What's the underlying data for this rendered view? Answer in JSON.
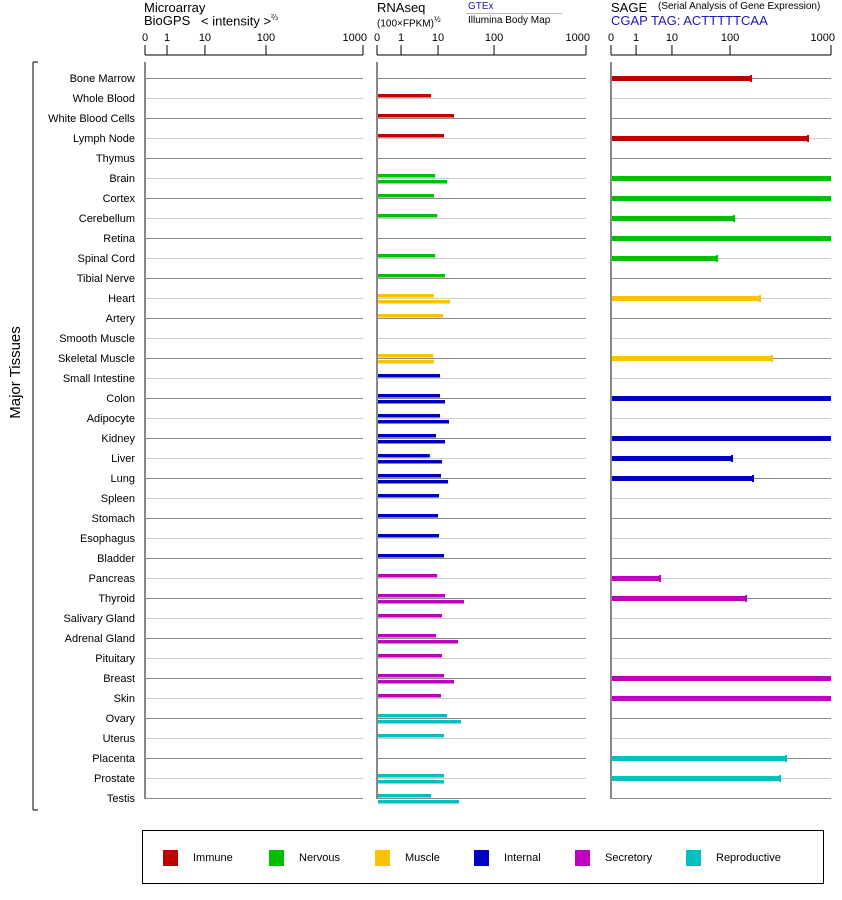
{
  "headers": {
    "microarray": {
      "title": "Microarray",
      "source": "BioGPS",
      "unit": "< intensity >",
      "unit_exp": "⅔"
    },
    "rnaseq": {
      "title": "RNAseq",
      "unit": "(100×FPKM)",
      "unit_exp": "½",
      "source_top": "GTEx",
      "source_bottom": "Illumina Body Map"
    },
    "sage": {
      "title": "SAGE",
      "subtitle": "(Serial Analysis of Gene Expression)",
      "tag": "CGAP TAG: ACTTTTTCAA"
    }
  },
  "chart_data": {
    "type": "bar",
    "orientation": "horizontal",
    "ylabel": "Major Tissues",
    "tick_labels": [
      "0",
      "1",
      "10",
      "100",
      "1000"
    ],
    "xlim": [
      0,
      1000
    ],
    "group_colors": {
      "Immune": "#c00000",
      "Nervous": "#00c000",
      "Muscle": "#ffc000",
      "Internal": "#0000c0",
      "Secretory": "#c000c0",
      "Reproductive": "#00c0c0"
    },
    "legend": [
      "Immune",
      "Nervous",
      "Muscle",
      "Internal",
      "Secretory",
      "Reproductive"
    ],
    "legend_placement": "bottom",
    "panels": [
      "microarray",
      "rnaseq",
      "sage"
    ],
    "tissues": [
      {
        "name": "Bone Marrow",
        "group": "Immune",
        "microarray": null,
        "rnaseq": [],
        "sage": 287
      },
      {
        "name": "Whole Blood",
        "group": "Immune",
        "microarray": null,
        "rnaseq": [
          8.3
        ],
        "sage": null
      },
      {
        "name": "White Blood Cells",
        "group": "Immune",
        "microarray": null,
        "rnaseq": [
          35.7
        ],
        "sage": null
      },
      {
        "name": "Lymph Node",
        "group": "Immune",
        "microarray": null,
        "rnaseq": [
          19.6
        ],
        "sage": 795
      },
      {
        "name": "Thymus",
        "group": "Immune",
        "microarray": null,
        "rnaseq": [],
        "sage": null
      },
      {
        "name": "Brain",
        "group": "Nervous",
        "microarray": null,
        "rnaseq": [
          9.3,
          24.5
        ],
        "sage": 1000
      },
      {
        "name": "Cortex",
        "group": "Nervous",
        "microarray": null,
        "rnaseq": [
          9.0
        ],
        "sage": 1000
      },
      {
        "name": "Cerebellum",
        "group": "Nervous",
        "microarray": null,
        "rnaseq": [
          9.8
        ],
        "sage": 136
      },
      {
        "name": "Retina",
        "group": "Nervous",
        "microarray": null,
        "rnaseq": [],
        "sage": 1000
      },
      {
        "name": "Spinal Cord",
        "group": "Nervous",
        "microarray": null,
        "rnaseq": [
          9.3
        ],
        "sage": 80
      },
      {
        "name": "Tibial Nerve",
        "group": "Nervous",
        "microarray": null,
        "rnaseq": [
          21.2
        ],
        "sage": null
      },
      {
        "name": "Heart",
        "group": "Muscle",
        "microarray": null,
        "rnaseq": [
          9.0,
          29.3
        ],
        "sage": 367
      },
      {
        "name": "Artery",
        "group": "Muscle",
        "microarray": null,
        "rnaseq": [
          18.0
        ],
        "sage": null
      },
      {
        "name": "Smooth Muscle",
        "group": "Muscle",
        "microarray": null,
        "rnaseq": [],
        "sage": null
      },
      {
        "name": "Skeletal Muscle",
        "group": "Muscle",
        "microarray": null,
        "rnaseq": [
          8.8,
          9.0
        ],
        "sage": 474
      },
      {
        "name": "Small Intestine",
        "group": "Internal",
        "microarray": null,
        "rnaseq": [
          13.2
        ],
        "sage": null
      },
      {
        "name": "Colon",
        "group": "Internal",
        "microarray": null,
        "rnaseq": [
          13.2,
          21.2
        ],
        "sage": 1000
      },
      {
        "name": "Adipocyte",
        "group": "Internal",
        "microarray": null,
        "rnaseq": [
          13.2,
          27.7
        ],
        "sage": null
      },
      {
        "name": "Kidney",
        "group": "Internal",
        "microarray": null,
        "rnaseq": [
          9.5,
          21.2
        ],
        "sage": 1000
      },
      {
        "name": "Liver",
        "group": "Internal",
        "microarray": null,
        "rnaseq": [
          8.0,
          16.4
        ],
        "sage": 118
      },
      {
        "name": "Lung",
        "group": "Internal",
        "microarray": null,
        "rnaseq": [
          14.8,
          26.1
        ],
        "sage": 305
      },
      {
        "name": "Spleen",
        "group": "Internal",
        "microarray": null,
        "rnaseq": [
          11.6
        ],
        "sage": null
      },
      {
        "name": "Stomach",
        "group": "Internal",
        "microarray": null,
        "rnaseq": [
          10.0
        ],
        "sage": null
      },
      {
        "name": "Esophagus",
        "group": "Internal",
        "microarray": null,
        "rnaseq": [
          11.6
        ],
        "sage": null
      },
      {
        "name": "Bladder",
        "group": "Internal",
        "microarray": null,
        "rnaseq": [
          19.6
        ],
        "sage": null
      },
      {
        "name": "Pancreas",
        "group": "Secretory",
        "microarray": null,
        "rnaseq": [
          9.8
        ],
        "sage": 7
      },
      {
        "name": "Thyroid",
        "group": "Secretory",
        "microarray": null,
        "rnaseq": [
          21.2,
          51.8
        ],
        "sage": 243
      },
      {
        "name": "Salivary Gland",
        "group": "Secretory",
        "microarray": null,
        "rnaseq": [
          16.4
        ],
        "sage": null
      },
      {
        "name": "Adrenal Gland",
        "group": "Secretory",
        "microarray": null,
        "rnaseq": [
          9.5,
          42.1
        ],
        "sage": null
      },
      {
        "name": "Pituitary",
        "group": "Secretory",
        "microarray": null,
        "rnaseq": [
          16.4
        ],
        "sage": null
      },
      {
        "name": "Breast",
        "group": "Secretory",
        "microarray": null,
        "rnaseq": [
          19.6,
          35.7
        ],
        "sage": 1000
      },
      {
        "name": "Skin",
        "group": "Secretory",
        "microarray": null,
        "rnaseq": [
          14.8
        ],
        "sage": 1000
      },
      {
        "name": "Ovary",
        "group": "Reproductive",
        "microarray": null,
        "rnaseq": [
          24.5,
          47.0
        ],
        "sage": null
      },
      {
        "name": "Uterus",
        "group": "Reproductive",
        "microarray": null,
        "rnaseq": [
          19.6
        ],
        "sage": null
      },
      {
        "name": "Placenta",
        "group": "Reproductive",
        "microarray": null,
        "rnaseq": [],
        "sage": 599
      },
      {
        "name": "Prostate",
        "group": "Reproductive",
        "microarray": null,
        "rnaseq": [
          19.6,
          19.6
        ],
        "sage": 546
      },
      {
        "name": "Testis",
        "group": "Reproductive",
        "microarray": null,
        "rnaseq": [
          8.3,
          43.8
        ],
        "sage": null
      }
    ]
  }
}
